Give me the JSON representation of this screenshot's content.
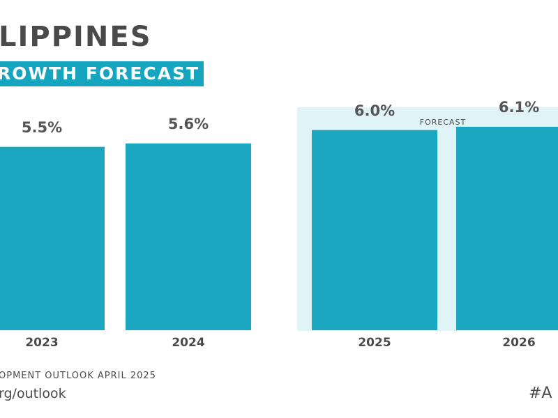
{
  "header": {
    "title": "LIPPINES",
    "subtitle": "ROWTH FORECAST"
  },
  "forecast_label": "FORECAST",
  "colors": {
    "bar": "#1aa7bf",
    "forecast_bg": "#e0f3f6",
    "text": "#4a4a4a",
    "accent": "#16a5bf"
  },
  "chart_data": {
    "type": "bar",
    "title": "LIPPINES",
    "subtitle": "ROWTH FORECAST",
    "categories": [
      "2023",
      "2024",
      "2025",
      "2026"
    ],
    "values": [
      5.5,
      5.6,
      6.0,
      6.1
    ],
    "value_labels": [
      "5.5%",
      "5.6%",
      "6.0%",
      "6.1%"
    ],
    "forecast_categories": [
      "2025",
      "2026"
    ],
    "xlabel": "",
    "ylabel": "",
    "ylim": [
      0,
      9.9
    ],
    "grid": false
  },
  "footer": {
    "source": "OPMENT OUTLOOK APRIL 2025",
    "url": "rg/outlook",
    "hashtag": "#A"
  }
}
